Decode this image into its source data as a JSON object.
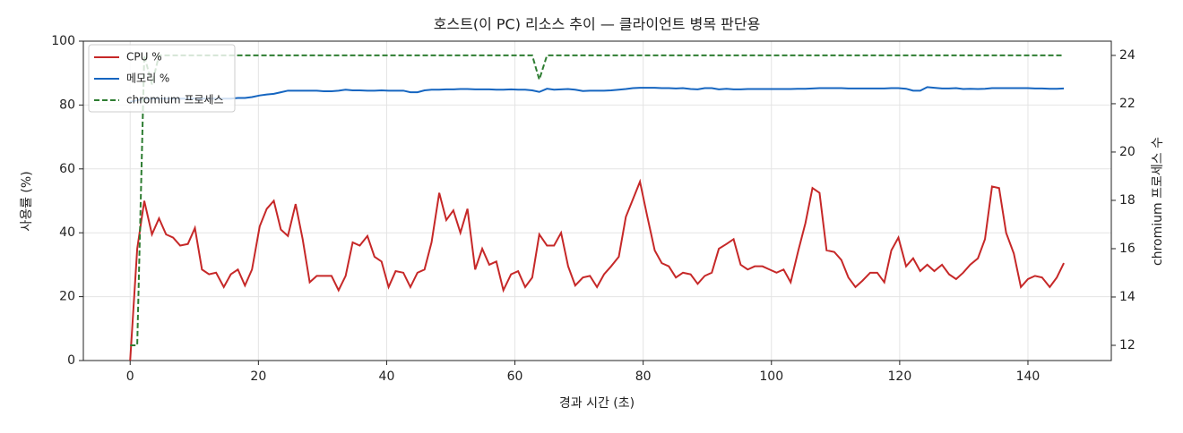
{
  "chart_data": {
    "type": "line",
    "title": "호스트(이 PC) 리소스 추이 — 클라이언트 병목 판단용",
    "xlabel": "경과 시간 (초)",
    "ylabel": "사용률 (%)",
    "y2label": "chromium 프로세스 수",
    "x": [
      0,
      1.1,
      2.2,
      3.4,
      4.5,
      5.6,
      6.7,
      7.8,
      9.0,
      10.1,
      11.2,
      12.3,
      13.4,
      14.6,
      15.7,
      16.8,
      17.9,
      19.0,
      20.2,
      21.3,
      22.4,
      23.5,
      24.6,
      25.8,
      26.9,
      28.0,
      29.1,
      30.2,
      31.4,
      32.5,
      33.6,
      34.7,
      35.8,
      37.0,
      38.1,
      39.2,
      40.3,
      41.4,
      42.6,
      43.7,
      44.8,
      45.9,
      47.0,
      48.2,
      49.3,
      50.4,
      51.5,
      52.6,
      53.8,
      54.9,
      56.0,
      57.1,
      58.2,
      59.4,
      60.5,
      61.6,
      62.7,
      63.8,
      65.0,
      66.1,
      67.2,
      68.3,
      69.4,
      70.6,
      71.7,
      72.8,
      73.9,
      75.0,
      76.2,
      77.3,
      78.4,
      79.5,
      80.6,
      81.8,
      82.9,
      84.0,
      85.1,
      86.2,
      87.4,
      88.5,
      89.6,
      90.7,
      91.8,
      93.0,
      94.1,
      95.2,
      96.3,
      97.4,
      98.6,
      99.7,
      100.8,
      101.9,
      103.0,
      104.2,
      105.3,
      106.4,
      107.5,
      108.6,
      109.8,
      110.9,
      112.0,
      113.1,
      114.2,
      115.4,
      116.5,
      117.6,
      118.7,
      119.8,
      121.0,
      122.1,
      123.2,
      124.3,
      125.4,
      126.6,
      127.7,
      128.8,
      129.9,
      131.0,
      132.2,
      133.3,
      134.4,
      135.5,
      136.6,
      137.8,
      138.9,
      140.0,
      141.1,
      142.2,
      143.4,
      144.5,
      145.6
    ],
    "series": [
      {
        "name": "CPU %",
        "color": "#c62828",
        "values": [
          0,
          35,
          50,
          39.5,
          44.5,
          39.5,
          38.5,
          36,
          36.5,
          41.5,
          28.5,
          27,
          27.5,
          23,
          27,
          28.5,
          23.5,
          28.5,
          42,
          47.5,
          50,
          41,
          39,
          49,
          38,
          24.5,
          26.5,
          26.5,
          26.5,
          22,
          26.5,
          37,
          36,
          39,
          32.5,
          31,
          23,
          28,
          27.5,
          23,
          27.5,
          28.5,
          37,
          52.5,
          44,
          47,
          40,
          47.5,
          28.5,
          35,
          30,
          31,
          22,
          27,
          28,
          23,
          26,
          39.5,
          36,
          36,
          40,
          29.5,
          23.5,
          26,
          26.5,
          23,
          27,
          29.5,
          32.5,
          45,
          50.5,
          56,
          45.5,
          34.5,
          30.5,
          29.5,
          26,
          27.5,
          27,
          24,
          26.5,
          27.5,
          35,
          36.5,
          38,
          30,
          28.5,
          29.5,
          29.5,
          28.5,
          27.5,
          28.5,
          24.5,
          34.5,
          43,
          54,
          52.5,
          34.5,
          34,
          31.5,
          26,
          23,
          25,
          27.5,
          27.5,
          24.5,
          34.5,
          38.5,
          29.5,
          32,
          28,
          30,
          28,
          30,
          27,
          25.5,
          27.5,
          30,
          32,
          38,
          54.5,
          54,
          40,
          33.5,
          23,
          25.5,
          26.5,
          26,
          23,
          26,
          30.5
        ]
      },
      {
        "name": "메모리 %",
        "color": "#1565c0",
        "values": [
          81,
          81.5,
          82,
          82,
          82,
          82,
          82,
          82,
          82,
          82,
          82,
          82,
          82,
          82,
          82,
          82.2,
          82.2,
          82.5,
          83,
          83.3,
          83.5,
          84,
          84.5,
          84.5,
          84.5,
          84.5,
          84.5,
          84.3,
          84.3,
          84.5,
          84.8,
          84.6,
          84.6,
          84.5,
          84.5,
          84.6,
          84.5,
          84.5,
          84.5,
          84,
          84,
          84.6,
          84.8,
          84.8,
          84.9,
          84.9,
          85,
          85,
          84.9,
          84.9,
          84.9,
          84.8,
          84.8,
          84.9,
          84.8,
          84.8,
          84.6,
          84.1,
          85.1,
          84.8,
          84.9,
          85,
          84.8,
          84.4,
          84.5,
          84.5,
          84.5,
          84.6,
          84.8,
          85,
          85.3,
          85.4,
          85.4,
          85.4,
          85.3,
          85.3,
          85.2,
          85.3,
          85,
          84.9,
          85.3,
          85.3,
          84.9,
          85.1,
          84.9,
          84.9,
          85,
          85,
          85,
          85,
          85,
          85,
          85,
          85.1,
          85.1,
          85.2,
          85.3,
          85.3,
          85.3,
          85.3,
          85.2,
          85.2,
          85.2,
          85.2,
          85.2,
          85.2,
          85.3,
          85.3,
          85.1,
          84.5,
          84.5,
          85.6,
          85.4,
          85.2,
          85.2,
          85.3,
          85,
          85.1,
          85,
          85.1,
          85.3,
          85.3,
          85.3,
          85.3,
          85.3,
          85.3,
          85.2,
          85.2,
          85.1,
          85.1,
          85.2
        ]
      },
      {
        "name": "chromium 프로세스",
        "color": "#2e7d32",
        "dashed": true,
        "axis": "y2",
        "values": [
          12,
          12,
          24,
          22.8,
          24,
          24,
          24,
          24,
          24,
          24,
          24,
          24,
          24,
          24,
          24,
          24,
          24,
          24,
          24,
          24,
          24,
          24,
          24,
          24,
          24,
          24,
          24,
          24,
          24,
          24,
          24,
          24,
          24,
          24,
          24,
          24,
          24,
          24,
          24,
          24,
          24,
          24,
          24,
          24,
          24,
          24,
          24,
          24,
          24,
          24,
          24,
          24,
          24,
          24,
          24,
          24,
          24,
          23,
          24,
          24,
          24,
          24,
          24,
          24,
          24,
          24,
          24,
          24,
          24,
          24,
          24,
          24,
          24,
          24,
          24,
          24,
          24,
          24,
          24,
          24,
          24,
          24,
          24,
          24,
          24,
          24,
          24,
          24,
          24,
          24,
          24,
          24,
          24,
          24,
          24,
          24,
          24,
          24,
          24,
          24,
          24,
          24,
          24,
          24,
          24,
          24,
          24,
          24,
          24,
          24,
          24,
          24,
          24,
          24,
          24,
          24,
          24,
          24,
          24,
          24,
          24,
          24,
          24,
          24,
          24,
          24,
          24,
          24,
          24,
          24,
          24
        ]
      }
    ],
    "xlim": [
      -7.3,
      153
    ],
    "ylim": [
      0,
      100
    ],
    "y2lim": [
      11.37,
      24.59
    ],
    "xticks": [
      0,
      20,
      40,
      60,
      80,
      100,
      120,
      140
    ],
    "yticks": [
      0,
      20,
      40,
      60,
      80,
      100
    ],
    "y2ticks": [
      12,
      14,
      16,
      18,
      20,
      22,
      24
    ],
    "grid": true,
    "legend": "upper left"
  }
}
